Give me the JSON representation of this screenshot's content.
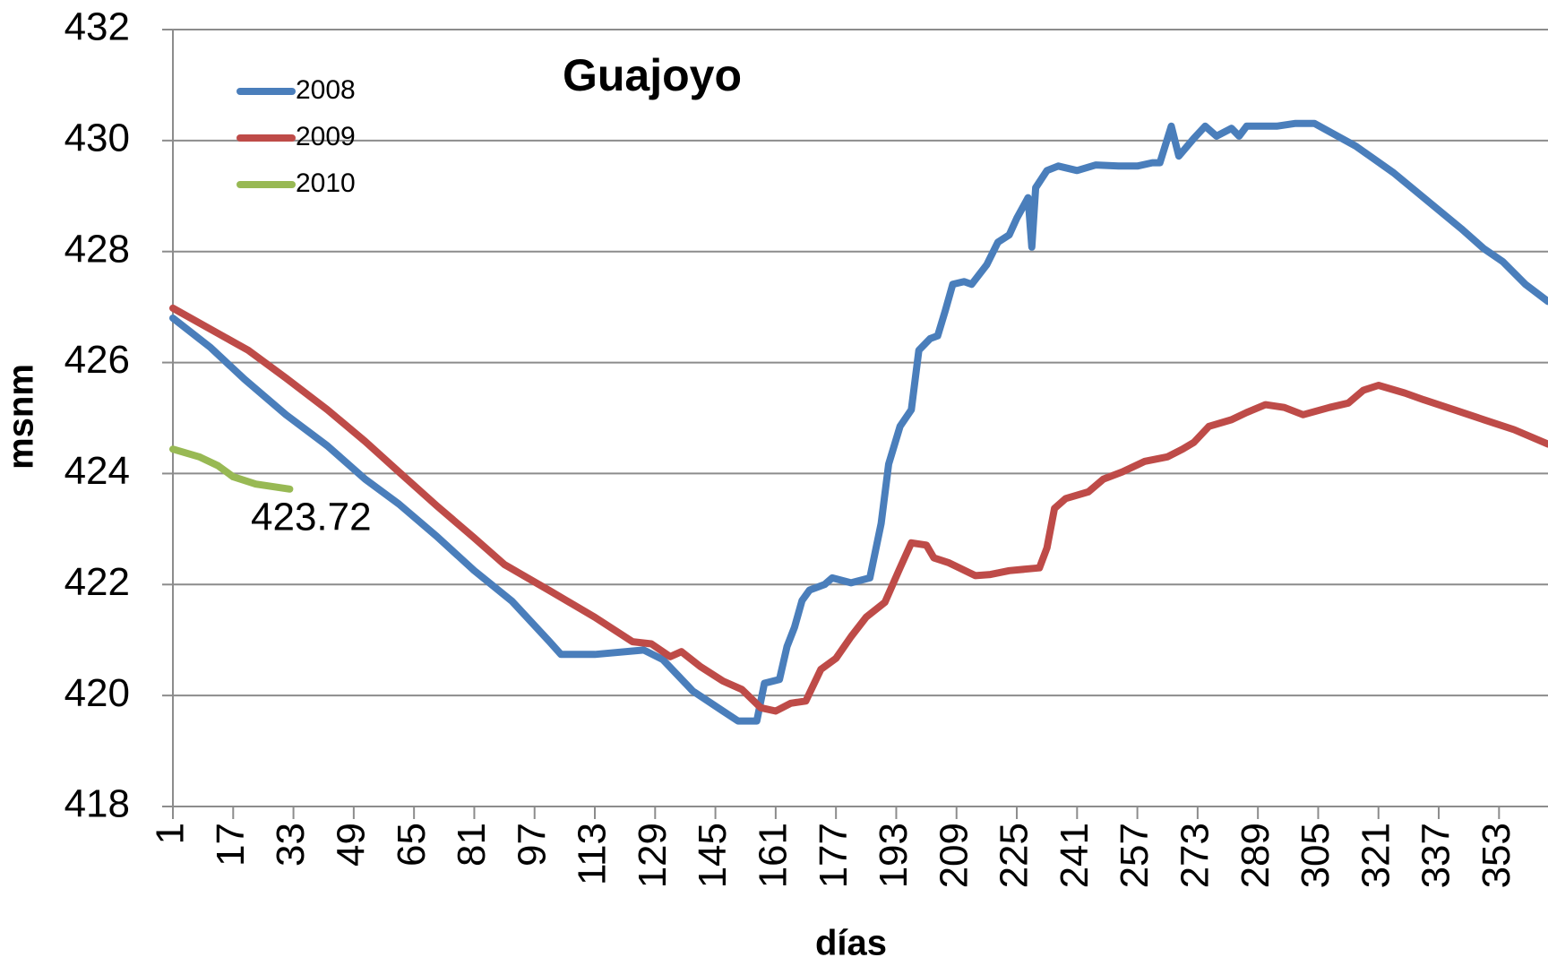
{
  "chart_data": {
    "type": "line",
    "title": "Guajoyo",
    "xlabel": "días",
    "ylabel": "msnm",
    "xlim": [
      1,
      366
    ],
    "xticks": [
      1,
      17,
      33,
      49,
      65,
      81,
      97,
      113,
      129,
      145,
      161,
      177,
      193,
      209,
      225,
      241,
      257,
      273,
      289,
      305,
      321,
      337,
      353
    ],
    "ylim": [
      418,
      432
    ],
    "yticks": [
      418,
      420,
      422,
      424,
      426,
      428,
      430,
      432
    ],
    "grid": true,
    "legend": "upper left",
    "annotations": [
      {
        "text": "423.72"
      }
    ],
    "series": [
      {
        "name": "2008",
        "color": "#4a7ebb",
        "x": [
          1,
          11,
          20,
          31,
          42,
          52,
          61,
          71,
          81,
          91,
          101,
          104,
          113,
          126,
          131,
          139,
          147,
          151,
          156,
          158,
          162,
          164,
          166,
          168,
          170,
          174,
          176,
          181,
          186,
          189,
          191,
          194,
          197,
          199,
          202,
          204,
          206,
          208,
          211,
          213,
          217,
          220,
          223,
          225,
          228,
          229,
          230,
          233,
          236,
          241,
          246,
          252,
          257,
          261,
          263,
          266,
          268,
          272,
          275,
          278,
          282,
          284,
          286,
          294,
          299,
          304,
          315,
          325,
          333,
          343,
          349,
          354,
          360,
          366
        ],
        "values": [
          426.8,
          426.27,
          425.7,
          425.06,
          424.5,
          423.9,
          423.45,
          422.87,
          422.25,
          421.7,
          420.97,
          420.74,
          420.74,
          420.82,
          420.65,
          420.08,
          419.72,
          419.54,
          419.54,
          420.22,
          420.29,
          420.88,
          421.23,
          421.71,
          421.9,
          422,
          422.12,
          422.03,
          422.12,
          423.1,
          424.17,
          424.85,
          425.15,
          426.22,
          426.43,
          426.48,
          426.93,
          427.41,
          427.46,
          427.41,
          427.76,
          428.17,
          428.3,
          428.6,
          428.97,
          428.08,
          429.15,
          429.46,
          429.54,
          429.46,
          429.56,
          429.54,
          429.54,
          429.6,
          429.6,
          430.26,
          429.72,
          430.04,
          430.26,
          430.08,
          430.22,
          430.08,
          430.26,
          430.26,
          430.31,
          430.31,
          429.9,
          429.42,
          428.97,
          428.41,
          428.05,
          427.82,
          427.41,
          427.1
        ]
      },
      {
        "name": "2009",
        "color": "#be4b48",
        "x": [
          1,
          21,
          31,
          42,
          52,
          61,
          71,
          81,
          89,
          101,
          113,
          123,
          128,
          133,
          136,
          141,
          147,
          152,
          157,
          161,
          165,
          169,
          173,
          177,
          181,
          185,
          190,
          194,
          197,
          201,
          203,
          207,
          214,
          218,
          223,
          231,
          233,
          235,
          238,
          244,
          248,
          253,
          259,
          265,
          269,
          272,
          276,
          282,
          286,
          291,
          296,
          301,
          308,
          313,
          317,
          321,
          328,
          333,
          341,
          349,
          357,
          366
        ],
        "values": [
          426.98,
          426.22,
          425.72,
          425.15,
          424.58,
          424.03,
          423.42,
          422.84,
          422.36,
          421.89,
          421.41,
          420.97,
          420.93,
          420.7,
          420.79,
          420.52,
          420.26,
          420.11,
          419.78,
          419.72,
          419.86,
          419.9,
          420.47,
          420.67,
          421.06,
          421.41,
          421.68,
          422.3,
          422.75,
          422.71,
          422.48,
          422.39,
          422.16,
          422.18,
          422.25,
          422.3,
          422.66,
          423.37,
          423.55,
          423.67,
          423.9,
          424.03,
          424.22,
          424.3,
          424.44,
          424.56,
          424.85,
          424.97,
          425.1,
          425.24,
          425.19,
          425.06,
          425.19,
          425.27,
          425.5,
          425.59,
          425.45,
          425.33,
          425.15,
          424.97,
          424.79,
          424.53
        ]
      },
      {
        "name": "2010",
        "color": "#98b954",
        "x": [
          1,
          8,
          13,
          17,
          23,
          32
        ],
        "values": [
          424.44,
          424.3,
          424.14,
          423.94,
          423.81,
          423.72
        ]
      }
    ]
  }
}
